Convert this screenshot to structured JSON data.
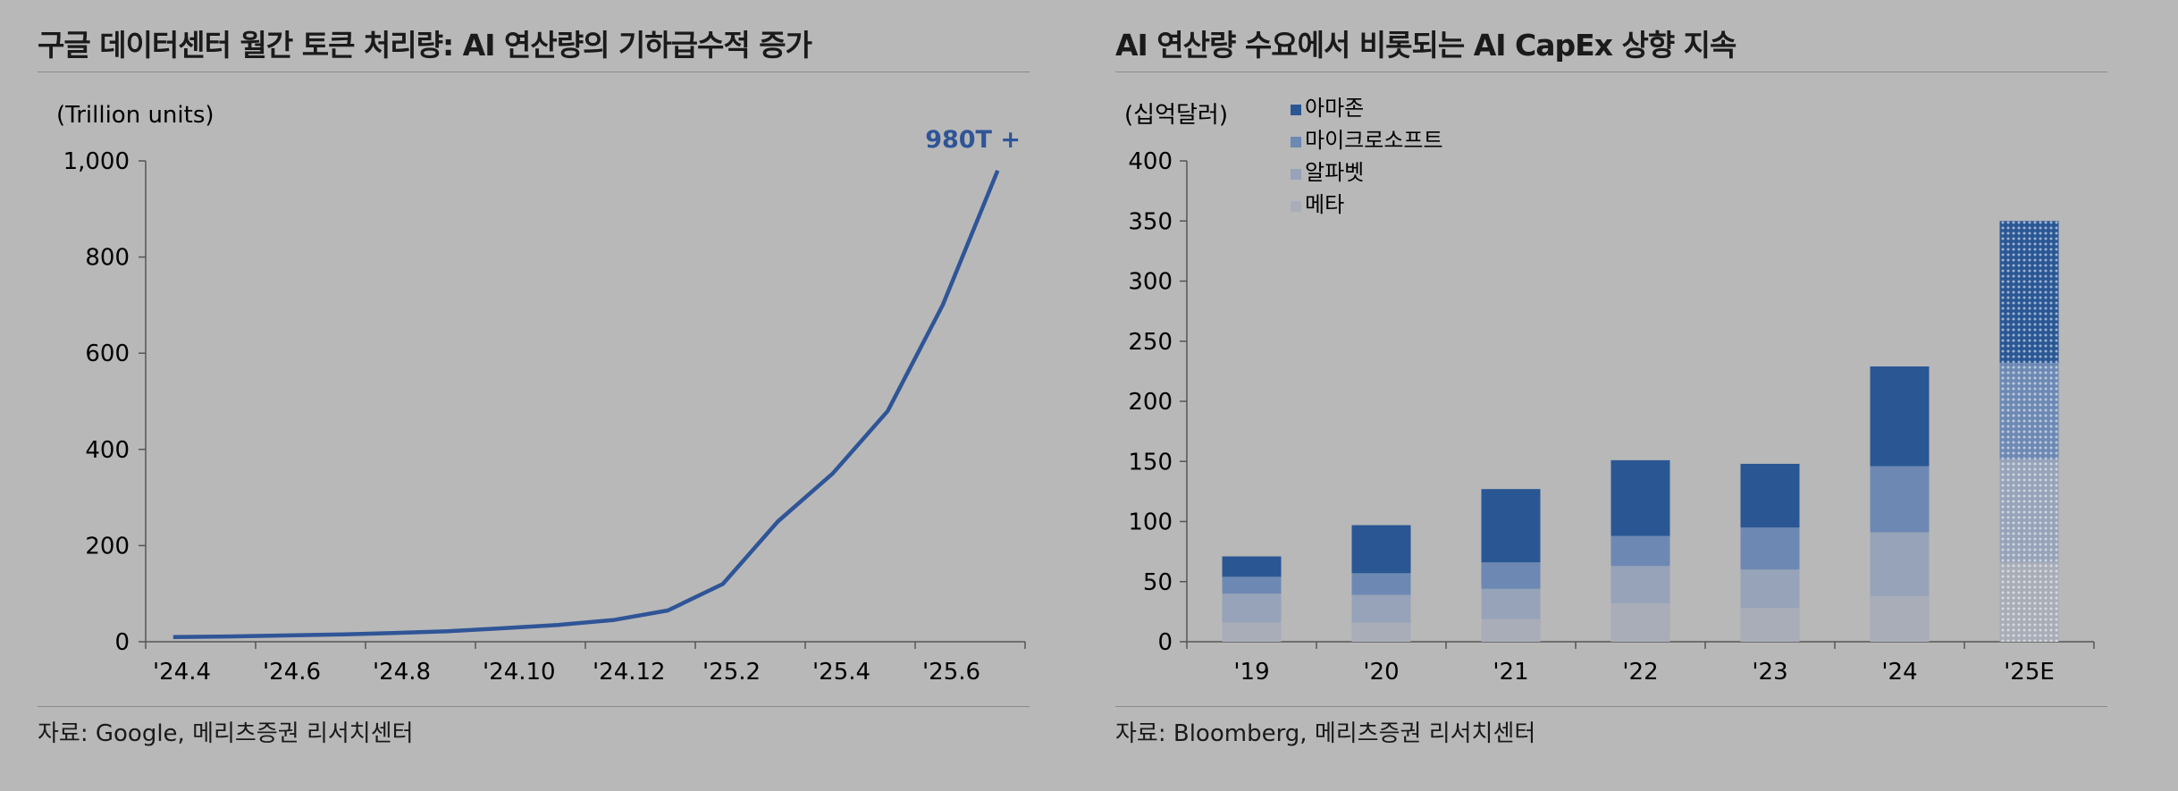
{
  "left": {
    "title": "구글 데이터센터 월간 토큰 처리량: AI 연산량의 기하급수적 증가",
    "source": "자료: Google, 메리츠증권 리서치센터",
    "colors": {
      "line": "#2f5597",
      "callout": "#2f5597"
    },
    "chart_data": {
      "type": "line",
      "unit_label": "(Trillion units)",
      "callout": "980T +",
      "x": [
        "'24.4",
        "'24.5",
        "'24.6",
        "'24.7",
        "'24.8",
        "'24.9",
        "'24.10",
        "'24.11",
        "'24.12",
        "'25.1",
        "'25.2",
        "'25.3",
        "'25.4",
        "'25.5",
        "'25.6",
        "'25.7"
      ],
      "x_tick_labels": [
        "'24.4",
        "'24.6",
        "'24.8",
        "'24.10",
        "'24.12",
        "'25.2",
        "'25.4",
        "'25.6"
      ],
      "series": [
        {
          "values": [
            9.7,
            11,
            13,
            15,
            18,
            22,
            28,
            35,
            45,
            65,
            120,
            250,
            350,
            480,
            700,
            980
          ]
        }
      ],
      "ylim": [
        0,
        1000
      ],
      "y_ticks": [
        "0",
        "200",
        "400",
        "600",
        "800",
        "1,000"
      ],
      "grid": false
    }
  },
  "right": {
    "title": "AI 연산량 수요에서 비롯되는 AI CapEx 상향 지속",
    "source": "자료: Bloomberg, 메리츠증권 리서치센터",
    "chart_data": {
      "type": "bar",
      "stacked": true,
      "unit_label": "(십억달러)",
      "categories": [
        "'19",
        "'20",
        "'21",
        "'22",
        "'23",
        "'24",
        "'25E"
      ],
      "estimated_category": "'25E",
      "series": [
        {
          "name": "메타",
          "color": "#a8adb7",
          "values": [
            16,
            16,
            19,
            32,
            28,
            38,
            66
          ]
        },
        {
          "name": "알파벳",
          "color": "#96a3b9",
          "values": [
            24,
            23,
            25,
            31,
            32,
            53,
            86
          ]
        },
        {
          "name": "마이크로소프트",
          "color": "#6d89b3",
          "values": [
            14,
            18,
            22,
            25,
            35,
            55,
            80
          ]
        },
        {
          "name": "아마존",
          "color": "#2a5794",
          "values": [
            17,
            40,
            61,
            63,
            53,
            83,
            118
          ]
        }
      ],
      "legend_order": [
        "아마존",
        "마이크로소프트",
        "알파벳",
        "메타"
      ],
      "legend_position": "top-left",
      "ylim": [
        0,
        400
      ],
      "y_ticks": [
        "0",
        "50",
        "100",
        "150",
        "200",
        "250",
        "300",
        "350",
        "400"
      ],
      "grid": false
    }
  }
}
